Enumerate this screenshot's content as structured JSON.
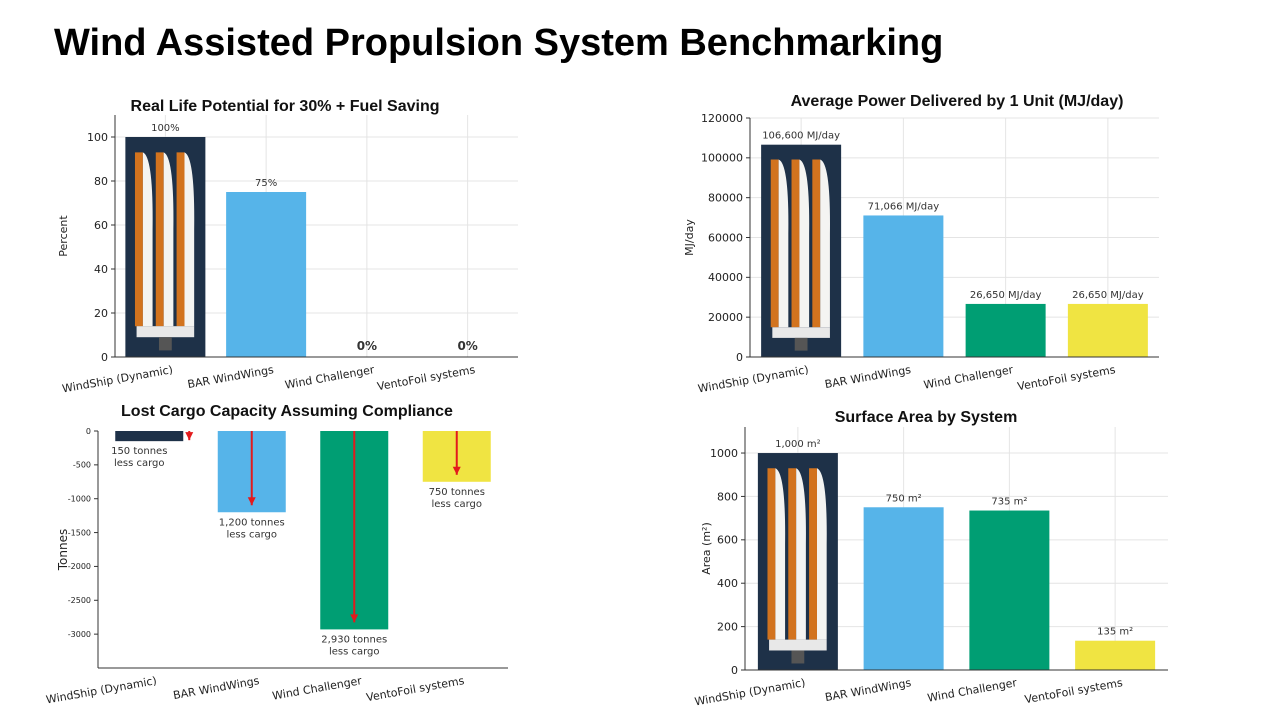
{
  "slide": {
    "title": "Wind Assisted Propulsion System Benchmarking"
  },
  "colors": {
    "windship": "#1e3148",
    "bar_windwings": "#56b4e9",
    "wind_challenger": "#009e73",
    "ventofoil": "#f0e442",
    "arrow": "#e31a1c"
  },
  "chart_data": [
    {
      "id": "fuel",
      "type": "bar",
      "title": "Real Life Potential for 30% + Fuel Saving",
      "xlabel": "",
      "ylabel": "Percent",
      "categories": [
        "WindShip (Dynamic)",
        "BAR WindWings",
        "Wind Challenger",
        "VentoFoil systems"
      ],
      "values": [
        100,
        75,
        0,
        0
      ],
      "value_labels": [
        "100%",
        "75%",
        "0%",
        "0%"
      ],
      "ylim": [
        0,
        110
      ],
      "yticks": [
        0,
        20,
        40,
        60,
        80,
        100
      ],
      "ytick_labels": [
        "0",
        "20",
        "40",
        "60",
        "80",
        "100"
      ],
      "grid": true,
      "legend": "none"
    },
    {
      "id": "power",
      "type": "bar",
      "title": "Average Power Delivered by 1 Unit (MJ/day)",
      "xlabel": "",
      "ylabel": "MJ/day",
      "categories": [
        "WindShip (Dynamic)",
        "BAR WindWings",
        "Wind Challenger",
        "VentoFoil systems"
      ],
      "values": [
        106600,
        71066,
        26650,
        26650
      ],
      "value_labels": [
        "106,600 MJ/day",
        "71,066 MJ/day",
        "26,650 MJ/day",
        "26,650 MJ/day"
      ],
      "ylim": [
        0,
        120000
      ],
      "yticks": [
        0,
        20000,
        40000,
        60000,
        80000,
        100000,
        120000
      ],
      "ytick_labels": [
        "0",
        "20000",
        "40000",
        "60000",
        "80000",
        "100000",
        "120000"
      ],
      "grid": true,
      "legend": "none"
    },
    {
      "id": "cargo",
      "type": "bar",
      "title": "Lost Cargo Capacity Assuming Compliance",
      "xlabel": "",
      "ylabel": "Tonnes",
      "categories": [
        "WindShip (Dynamic)",
        "BAR WindWings",
        "Wind Challenger",
        "VentoFoil systems"
      ],
      "values": [
        -150,
        -1200,
        -2930,
        -750
      ],
      "value_labels": [
        "150 tonnes\nless cargo",
        "1,200 tonnes\nless cargo",
        "2,930 tonnes\nless cargo",
        "750 tonnes\nless cargo"
      ],
      "ylim": [
        -3500,
        0
      ],
      "yticks": [
        0,
        -500,
        -1000,
        -1500,
        -2000,
        -2500,
        -3000
      ],
      "ytick_labels": [
        "0",
        "-500",
        "-1000",
        "-1500",
        "-2000",
        "-2500",
        "-3000"
      ],
      "grid": false,
      "legend": "none"
    },
    {
      "id": "area",
      "type": "bar",
      "title": "Surface Area by System",
      "xlabel": "",
      "ylabel": "Area (m²)",
      "categories": [
        "WindShip (Dynamic)",
        "BAR WindWings",
        "Wind Challenger",
        "VentoFoil systems"
      ],
      "values": [
        1000,
        750,
        735,
        135
      ],
      "value_labels": [
        "1,000 m²",
        "750 m²",
        "735 m²",
        "135 m²"
      ],
      "ylim": [
        0,
        1120
      ],
      "yticks": [
        0,
        200,
        400,
        600,
        800,
        1000
      ],
      "ytick_labels": [
        "0",
        "200",
        "400",
        "600",
        "800",
        "1000"
      ],
      "grid": true,
      "legend": "none"
    }
  ]
}
